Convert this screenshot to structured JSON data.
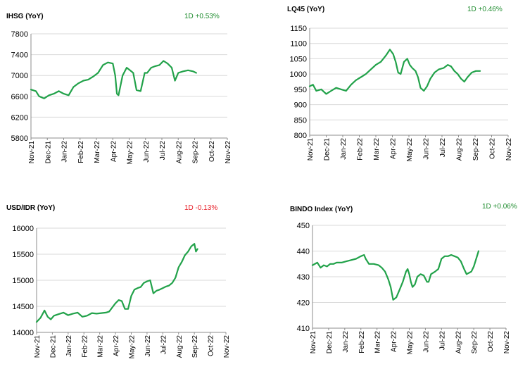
{
  "colors": {
    "line": "#22a24a",
    "up": "#1e8c2e",
    "down": "#e8212a",
    "grid": "#d9d9d9",
    "axis": "#8c8c8c"
  },
  "months": [
    "Nov-21",
    "Dec-21",
    "Jan-22",
    "Feb-22",
    "Mar-22",
    "Apr-22",
    "May-22",
    "Jun-22",
    "Jul-22",
    "Aug-22",
    "Sep-22",
    "Oct-22",
    "Nov-22"
  ],
  "chart_data": [
    {
      "type": "line",
      "title": "IHSG (YoY)",
      "change": "1D +0.53%",
      "change_dir": "up",
      "ylim": [
        5800,
        7800
      ],
      "yticks": [
        5800,
        6200,
        6600,
        7000,
        7400,
        7800
      ],
      "x": [
        "Nov-21",
        "Dec-21",
        "Jan-22",
        "Feb-22",
        "Mar-22",
        "Apr-22",
        "May-22",
        "Jun-22",
        "Jul-22",
        "Aug-22",
        "Sep-22",
        "Oct-22",
        "Nov-22"
      ],
      "series": [
        {
          "values": [
            [
              0,
              6730
            ],
            [
              0.3,
              6700
            ],
            [
              0.5,
              6600
            ],
            [
              0.8,
              6560
            ],
            [
              1.1,
              6620
            ],
            [
              1.4,
              6650
            ],
            [
              1.7,
              6700
            ],
            [
              2.0,
              6650
            ],
            [
              2.3,
              6620
            ],
            [
              2.6,
              6780
            ],
            [
              2.9,
              6850
            ],
            [
              3.2,
              6900
            ],
            [
              3.5,
              6920
            ],
            [
              3.8,
              6980
            ],
            [
              4.1,
              7050
            ],
            [
              4.4,
              7200
            ],
            [
              4.7,
              7250
            ],
            [
              5.0,
              7230
            ],
            [
              5.15,
              7000
            ],
            [
              5.25,
              6650
            ],
            [
              5.35,
              6620
            ],
            [
              5.6,
              7000
            ],
            [
              5.85,
              7150
            ],
            [
              6.05,
              7100
            ],
            [
              6.25,
              7050
            ],
            [
              6.45,
              6720
            ],
            [
              6.7,
              6700
            ],
            [
              6.95,
              7050
            ],
            [
              7.1,
              7050
            ],
            [
              7.35,
              7150
            ],
            [
              7.6,
              7180
            ],
            [
              7.85,
              7200
            ],
            [
              8.1,
              7280
            ],
            [
              8.35,
              7230
            ],
            [
              8.6,
              7150
            ],
            [
              8.8,
              6900
            ],
            [
              9.0,
              7050
            ],
            [
              9.3,
              7080
            ],
            [
              9.6,
              7100
            ],
            [
              9.9,
              7080
            ],
            [
              10.1,
              7050
            ]
          ]
        }
      ]
    },
    {
      "type": "line",
      "title": "LQ45 (YoY)",
      "change": "1D +0.46%",
      "change_dir": "up",
      "ylim": [
        800,
        1150
      ],
      "yticks": [
        800,
        850,
        900,
        950,
        1000,
        1050,
        1100,
        1150
      ],
      "x": [
        "Nov-21",
        "Dec-21",
        "Jan-22",
        "Feb-22",
        "Mar-22",
        "Apr-22",
        "May-22",
        "Jun-22",
        "Jul-22",
        "Aug-22",
        "Sep-22",
        "Oct-22",
        "Nov-22"
      ],
      "series": [
        {
          "values": [
            [
              0,
              960
            ],
            [
              0.2,
              965
            ],
            [
              0.4,
              945
            ],
            [
              0.7,
              950
            ],
            [
              1.0,
              935
            ],
            [
              1.3,
              945
            ],
            [
              1.6,
              955
            ],
            [
              1.9,
              950
            ],
            [
              2.2,
              945
            ],
            [
              2.5,
              965
            ],
            [
              2.8,
              980
            ],
            [
              3.1,
              990
            ],
            [
              3.4,
              1000
            ],
            [
              3.7,
              1015
            ],
            [
              4.0,
              1030
            ],
            [
              4.3,
              1040
            ],
            [
              4.6,
              1060
            ],
            [
              4.85,
              1080
            ],
            [
              5.05,
              1065
            ],
            [
              5.2,
              1040
            ],
            [
              5.35,
              1005
            ],
            [
              5.5,
              1000
            ],
            [
              5.7,
              1040
            ],
            [
              5.9,
              1050
            ],
            [
              6.05,
              1030
            ],
            [
              6.2,
              1020
            ],
            [
              6.4,
              1010
            ],
            [
              6.55,
              990
            ],
            [
              6.7,
              955
            ],
            [
              6.9,
              945
            ],
            [
              7.1,
              960
            ],
            [
              7.3,
              985
            ],
            [
              7.55,
              1005
            ],
            [
              7.8,
              1015
            ],
            [
              8.1,
              1020
            ],
            [
              8.35,
              1030
            ],
            [
              8.55,
              1025
            ],
            [
              8.75,
              1010
            ],
            [
              8.95,
              1000
            ],
            [
              9.15,
              985
            ],
            [
              9.35,
              975
            ],
            [
              9.55,
              990
            ],
            [
              9.8,
              1005
            ],
            [
              10.05,
              1010
            ],
            [
              10.3,
              1010
            ]
          ]
        }
      ]
    },
    {
      "type": "line",
      "title": "USD/IDR  (YoY)",
      "change": "1D -0.13%",
      "change_dir": "down",
      "ylim": [
        14000,
        16000
      ],
      "yticks": [
        14000,
        14500,
        15000,
        15500,
        16000
      ],
      "x": [
        "Nov-21",
        "Dec-21",
        "Jan-22",
        "Feb-22",
        "Mar-22",
        "Apr-22",
        "May-22",
        "Jun-22",
        "Jul-22",
        "Aug-22",
        "Sep-22",
        "Oct-22",
        "Nov-22"
      ],
      "series": [
        {
          "values": [
            [
              0,
              14200
            ],
            [
              0.25,
              14280
            ],
            [
              0.5,
              14420
            ],
            [
              0.7,
              14300
            ],
            [
              0.9,
              14250
            ],
            [
              1.1,
              14320
            ],
            [
              1.4,
              14350
            ],
            [
              1.7,
              14380
            ],
            [
              2.0,
              14330
            ],
            [
              2.3,
              14360
            ],
            [
              2.6,
              14380
            ],
            [
              2.9,
              14300
            ],
            [
              3.2,
              14320
            ],
            [
              3.5,
              14370
            ],
            [
              3.8,
              14360
            ],
            [
              4.1,
              14370
            ],
            [
              4.4,
              14380
            ],
            [
              4.6,
              14400
            ],
            [
              4.8,
              14480
            ],
            [
              5.0,
              14560
            ],
            [
              5.2,
              14620
            ],
            [
              5.4,
              14600
            ],
            [
              5.6,
              14450
            ],
            [
              5.8,
              14450
            ],
            [
              6.0,
              14700
            ],
            [
              6.2,
              14820
            ],
            [
              6.4,
              14850
            ],
            [
              6.6,
              14870
            ],
            [
              6.8,
              14950
            ],
            [
              7.0,
              14980
            ],
            [
              7.2,
              15000
            ],
            [
              7.4,
              14750
            ],
            [
              7.6,
              14800
            ],
            [
              7.8,
              14820
            ],
            [
              8.0,
              14850
            ],
            [
              8.2,
              14880
            ],
            [
              8.4,
              14900
            ],
            [
              8.6,
              14950
            ],
            [
              8.8,
              15050
            ],
            [
              9.0,
              15250
            ],
            [
              9.2,
              15350
            ],
            [
              9.4,
              15480
            ],
            [
              9.6,
              15550
            ],
            [
              9.8,
              15650
            ],
            [
              10.0,
              15700
            ],
            [
              10.1,
              15550
            ],
            [
              10.2,
              15600
            ]
          ]
        }
      ]
    },
    {
      "type": "line",
      "title": "BINDO Index (YoY)",
      "change": "1D +0.06%",
      "change_dir": "up",
      "ylim": [
        410,
        450
      ],
      "yticks": [
        410,
        420,
        430,
        440,
        450
      ],
      "x": [
        "Nov-21",
        "Dec-21",
        "Jan-22",
        "Feb-22",
        "Mar-22",
        "Apr-22",
        "May-22",
        "Jun-22",
        "Jul-22",
        "Aug-22",
        "Sep-22",
        "Oct-22",
        "Nov-22"
      ],
      "series": [
        {
          "values": [
            [
              0,
              434.5
            ],
            [
              0.3,
              435.5
            ],
            [
              0.5,
              433.5
            ],
            [
              0.7,
              434.5
            ],
            [
              0.9,
              434
            ],
            [
              1.1,
              435
            ],
            [
              1.3,
              435
            ],
            [
              1.5,
              435.5
            ],
            [
              1.8,
              435.5
            ],
            [
              2.1,
              436
            ],
            [
              2.4,
              436.5
            ],
            [
              2.7,
              437
            ],
            [
              3.0,
              438
            ],
            [
              3.2,
              438.5
            ],
            [
              3.3,
              437
            ],
            [
              3.5,
              435
            ],
            [
              3.8,
              435
            ],
            [
              4.1,
              434.5
            ],
            [
              4.3,
              433.5
            ],
            [
              4.5,
              432
            ],
            [
              4.7,
              429
            ],
            [
              4.85,
              426
            ],
            [
              5.0,
              421
            ],
            [
              5.2,
              422
            ],
            [
              5.4,
              425
            ],
            [
              5.6,
              428
            ],
            [
              5.8,
              432
            ],
            [
              5.9,
              433
            ],
            [
              6.0,
              431
            ],
            [
              6.1,
              428
            ],
            [
              6.2,
              426
            ],
            [
              6.35,
              427
            ],
            [
              6.5,
              430
            ],
            [
              6.7,
              431
            ],
            [
              6.9,
              430.5
            ],
            [
              7.1,
              428
            ],
            [
              7.2,
              428
            ],
            [
              7.35,
              431
            ],
            [
              7.6,
              432
            ],
            [
              7.8,
              433
            ],
            [
              8.0,
              437
            ],
            [
              8.2,
              438
            ],
            [
              8.4,
              438
            ],
            [
              8.6,
              438.5
            ],
            [
              8.8,
              438
            ],
            [
              9.0,
              437.5
            ],
            [
              9.2,
              436
            ],
            [
              9.4,
              433
            ],
            [
              9.55,
              431
            ],
            [
              9.7,
              431.5
            ],
            [
              9.85,
              432
            ],
            [
              10.0,
              434
            ],
            [
              10.15,
              437
            ],
            [
              10.3,
              440
            ]
          ]
        }
      ]
    }
  ]
}
